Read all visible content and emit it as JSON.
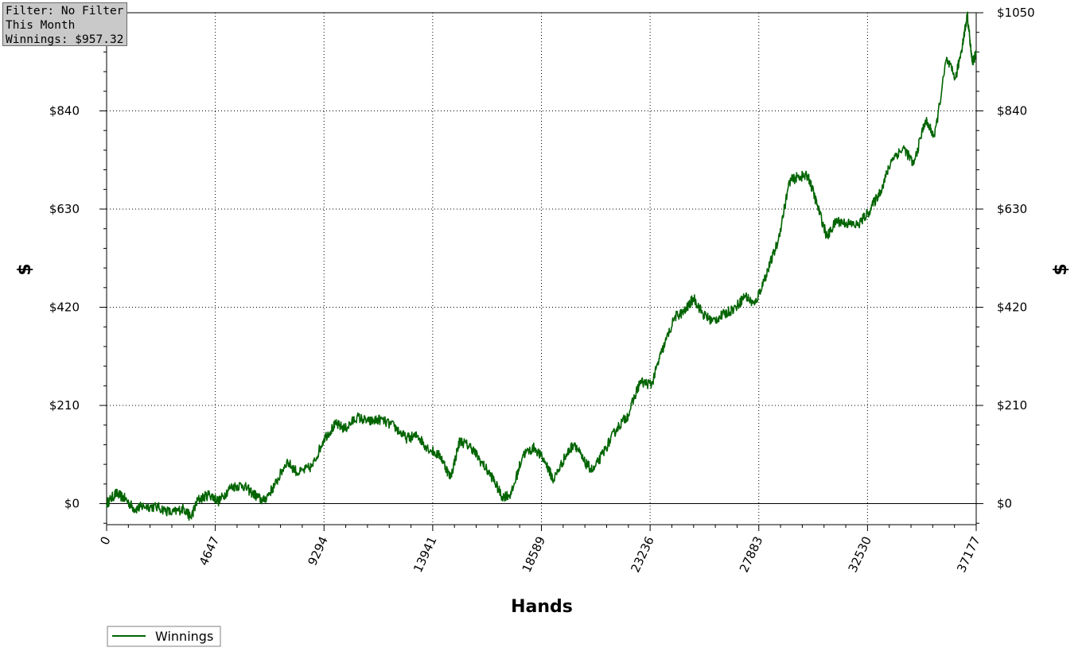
{
  "info_box": {
    "filter": "Filter: No Filter",
    "period": "This Month",
    "winnings": "Winnings: $957.32"
  },
  "colors": {
    "series": "#006400",
    "grid": "#000000",
    "zero_line": "#000000"
  },
  "chart_data": {
    "type": "line",
    "xlabel": "Hands",
    "ylabel_left": "$",
    "ylabel_right": "$",
    "xlim": [
      0,
      37177
    ],
    "ylim": [
      -45,
      1050
    ],
    "x_ticks": [
      0,
      4647,
      9294,
      13941,
      18589,
      23236,
      27883,
      32530,
      37177
    ],
    "y_ticks": [
      0,
      210,
      420,
      630,
      840,
      1050
    ],
    "y_tick_labels_left": [
      "$0",
      "$210",
      "$420",
      "$630",
      "$840"
    ],
    "y_tick_labels_right": [
      "$0",
      "$210",
      "$420",
      "$630",
      "$840",
      "$1050"
    ],
    "grid": true,
    "legend_position": "bottom-left",
    "series": [
      {
        "name": "Winnings",
        "points": [
          [
            0,
            0
          ],
          [
            400,
            22
          ],
          [
            800,
            10
          ],
          [
            1200,
            -12
          ],
          [
            1600,
            -5
          ],
          [
            2200,
            -8
          ],
          [
            2800,
            -20
          ],
          [
            3300,
            -10
          ],
          [
            3600,
            -30
          ],
          [
            3900,
            8
          ],
          [
            4400,
            20
          ],
          [
            4800,
            5
          ],
          [
            5300,
            35
          ],
          [
            5800,
            40
          ],
          [
            6300,
            20
          ],
          [
            6700,
            5
          ],
          [
            7200,
            40
          ],
          [
            7700,
            90
          ],
          [
            8200,
            65
          ],
          [
            8800,
            80
          ],
          [
            9300,
            140
          ],
          [
            9800,
            170
          ],
          [
            10200,
            160
          ],
          [
            10700,
            185
          ],
          [
            11200,
            175
          ],
          [
            11700,
            180
          ],
          [
            12300,
            165
          ],
          [
            12800,
            140
          ],
          [
            13300,
            145
          ],
          [
            13700,
            120
          ],
          [
            14300,
            100
          ],
          [
            14700,
            55
          ],
          [
            15100,
            135
          ],
          [
            15600,
            120
          ],
          [
            16000,
            90
          ],
          [
            16500,
            55
          ],
          [
            16900,
            15
          ],
          [
            17300,
            20
          ],
          [
            17800,
            105
          ],
          [
            18300,
            120
          ],
          [
            18800,
            85
          ],
          [
            19100,
            50
          ],
          [
            19600,
            100
          ],
          [
            20000,
            130
          ],
          [
            20400,
            90
          ],
          [
            20800,
            70
          ],
          [
            21300,
            115
          ],
          [
            21800,
            160
          ],
          [
            22300,
            190
          ],
          [
            22800,
            260
          ],
          [
            23300,
            255
          ],
          [
            23700,
            320
          ],
          [
            24300,
            400
          ],
          [
            24700,
            410
          ],
          [
            25100,
            440
          ],
          [
            25500,
            405
          ],
          [
            25900,
            390
          ],
          [
            26400,
            405
          ],
          [
            26900,
            420
          ],
          [
            27300,
            445
          ],
          [
            27700,
            425
          ],
          [
            28200,
            490
          ],
          [
            28700,
            560
          ],
          [
            29200,
            690
          ],
          [
            29600,
            700
          ],
          [
            30000,
            700
          ],
          [
            30400,
            635
          ],
          [
            30800,
            570
          ],
          [
            31200,
            605
          ],
          [
            31600,
            600
          ],
          [
            32100,
            595
          ],
          [
            32600,
            625
          ],
          [
            33100,
            670
          ],
          [
            33600,
            740
          ],
          [
            34100,
            760
          ],
          [
            34500,
            725
          ],
          [
            35000,
            820
          ],
          [
            35400,
            785
          ],
          [
            35900,
            950
          ],
          [
            36300,
            910
          ],
          [
            36600,
            985
          ],
          [
            36800,
            1045
          ],
          [
            37000,
            945
          ],
          [
            37177,
            960
          ]
        ]
      }
    ]
  }
}
